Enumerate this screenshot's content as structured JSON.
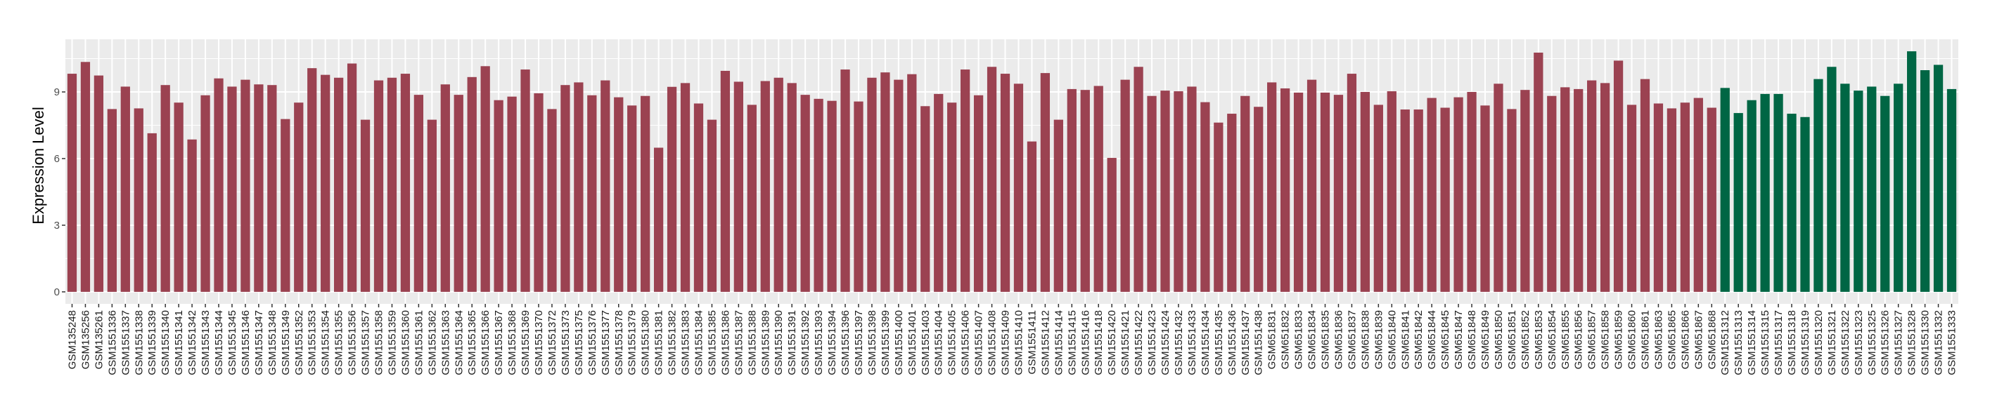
{
  "chart_data": {
    "type": "bar",
    "title": "",
    "xlabel": "",
    "ylabel": "Expression Level",
    "ylim": [
      -0.54,
      11.37
    ],
    "yticks": [
      0,
      3,
      6,
      9
    ],
    "grid": true,
    "legend": "none",
    "categories": [
      "GSM135248",
      "GSM135256",
      "GSM135261",
      "GSM1551336",
      "GSM1551337",
      "GSM1551338",
      "GSM1551339",
      "GSM1551340",
      "GSM1551341",
      "GSM1551342",
      "GSM1551343",
      "GSM1551344",
      "GSM1551345",
      "GSM1551346",
      "GSM1551347",
      "GSM1551348",
      "GSM1551349",
      "GSM1551352",
      "GSM1551353",
      "GSM1551354",
      "GSM1551355",
      "GSM1551356",
      "GSM1551357",
      "GSM1551358",
      "GSM1551359",
      "GSM1551360",
      "GSM1551361",
      "GSM1551362",
      "GSM1551363",
      "GSM1551364",
      "GSM1551365",
      "GSM1551366",
      "GSM1551367",
      "GSM1551368",
      "GSM1551369",
      "GSM1551370",
      "GSM1551372",
      "GSM1551373",
      "GSM1551375",
      "GSM1551376",
      "GSM1551377",
      "GSM1551378",
      "GSM1551379",
      "GSM1551380",
      "GSM1551381",
      "GSM1551382",
      "GSM1551383",
      "GSM1551384",
      "GSM1551385",
      "GSM1551386",
      "GSM1551387",
      "GSM1551388",
      "GSM1551389",
      "GSM1551390",
      "GSM1551391",
      "GSM1551392",
      "GSM1551393",
      "GSM1551394",
      "GSM1551396",
      "GSM1551397",
      "GSM1551398",
      "GSM1551399",
      "GSM1551400",
      "GSM1551401",
      "GSM1551403",
      "GSM1551404",
      "GSM1551405",
      "GSM1551406",
      "GSM1551407",
      "GSM1551408",
      "GSM1551409",
      "GSM1551410",
      "GSM1551411",
      "GSM1551412",
      "GSM1551414",
      "GSM1551415",
      "GSM1551416",
      "GSM1551418",
      "GSM1551420",
      "GSM1551421",
      "GSM1551422",
      "GSM1551423",
      "GSM1551424",
      "GSM1551432",
      "GSM1551433",
      "GSM1551434",
      "GSM1551435",
      "GSM1551436",
      "GSM1551437",
      "GSM1551438",
      "GSM651831",
      "GSM651832",
      "GSM651833",
      "GSM651834",
      "GSM651835",
      "GSM651836",
      "GSM651837",
      "GSM651838",
      "GSM651839",
      "GSM651840",
      "GSM651841",
      "GSM651842",
      "GSM651844",
      "GSM651845",
      "GSM651847",
      "GSM651848",
      "GSM651849",
      "GSM651850",
      "GSM651851",
      "GSM651852",
      "GSM651853",
      "GSM651854",
      "GSM651855",
      "GSM651856",
      "GSM651857",
      "GSM651858",
      "GSM651859",
      "GSM651860",
      "GSM651861",
      "GSM651863",
      "GSM651865",
      "GSM651866",
      "GSM651867",
      "GSM651868",
      "GSM1551312",
      "GSM1551313",
      "GSM1551314",
      "GSM1551315",
      "GSM1551317",
      "GSM1551318",
      "GSM1551319",
      "GSM1551320",
      "GSM1551321",
      "GSM1551322",
      "GSM1551323",
      "GSM1551325",
      "GSM1551326",
      "GSM1551327",
      "GSM1551328",
      "GSM1551330",
      "GSM1551332",
      "GSM1551333"
    ],
    "values": [
      9.82,
      10.35,
      9.74,
      8.23,
      9.24,
      8.26,
      7.14,
      9.31,
      8.52,
      6.86,
      8.85,
      9.61,
      9.24,
      9.55,
      9.34,
      9.31,
      7.78,
      8.52,
      10.07,
      9.77,
      9.64,
      10.28,
      7.75,
      9.52,
      9.64,
      9.82,
      8.87,
      7.75,
      9.34,
      8.87,
      9.67,
      10.16,
      8.63,
      8.79,
      10.01,
      8.94,
      8.23,
      9.31,
      9.43,
      8.85,
      9.52,
      8.76,
      8.39,
      8.82,
      6.49,
      9.23,
      9.4,
      8.48,
      7.75,
      9.95,
      9.46,
      8.42,
      9.49,
      9.64,
      9.4,
      8.87,
      8.69,
      8.6,
      10.01,
      8.57,
      9.64,
      9.88,
      9.55,
      9.8,
      8.36,
      8.91,
      8.52,
      10.01,
      8.85,
      10.13,
      9.82,
      9.37,
      6.77,
      9.85,
      7.75,
      9.13,
      9.09,
      9.27,
      6.03,
      9.55,
      10.13,
      8.82,
      9.06,
      9.03,
      9.24,
      8.54,
      7.62,
      8.02,
      8.82,
      8.33,
      9.43,
      9.16,
      8.97,
      9.55,
      8.97,
      8.87,
      9.82,
      9.0,
      8.42,
      9.03,
      8.21,
      8.21,
      8.73,
      8.29,
      8.76,
      9.0,
      8.39,
      9.37,
      8.23,
      9.09,
      10.77,
      8.82,
      9.21,
      9.13,
      9.52,
      9.4,
      10.41,
      8.42,
      9.58,
      8.48,
      8.26,
      8.52,
      8.73,
      8.29,
      9.18,
      8.05,
      8.63,
      8.91,
      8.91,
      8.02,
      7.87,
      9.58,
      10.13,
      9.37,
      9.06,
      9.24,
      8.82,
      9.37,
      10.83,
      9.98,
      10.22,
      9.13
    ],
    "bar_groups": [
      {
        "color": "#9B4251",
        "count": 124
      },
      {
        "color": "#006644",
        "count": 18
      }
    ],
    "panel_background": "#EBEBEB",
    "grid_color": "#FFFFFF"
  }
}
